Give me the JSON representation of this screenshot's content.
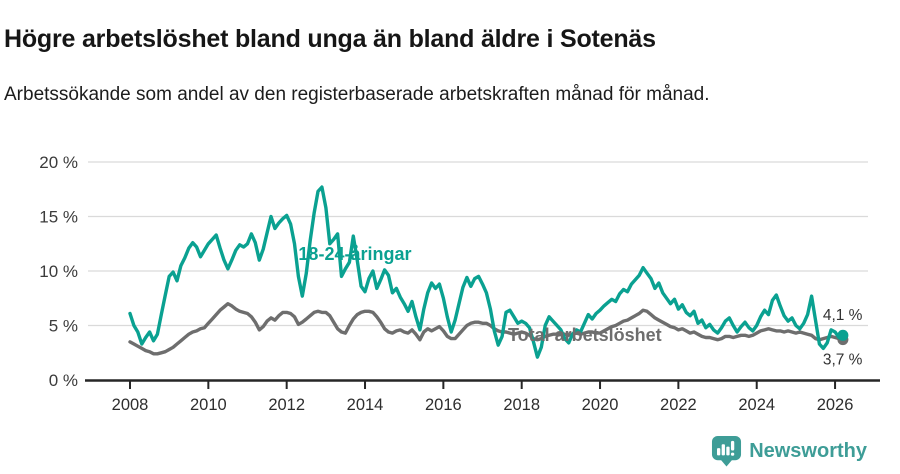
{
  "header": {
    "title": "Högre arbetslöshet bland unga än bland äldre i Sotenäs",
    "subtitle": "Arbetssökande som andel av den registerbaserade arbetskraften månad för månad."
  },
  "branding": {
    "name": "Newsworthy",
    "color": "#3e9d97",
    "icon": "bar-chart-speech-bubble"
  },
  "colors": {
    "youth_line": "#0aa191",
    "total_line": "#6e6e6e",
    "grid": "#dadada",
    "axis": "#262626",
    "tick_text": "#3b3b3b",
    "value_label_text": "#333333"
  },
  "chart_data": {
    "type": "line",
    "title": "Högre arbetslöshet bland unga än bland äldre i Sotenäs",
    "subtitle": "Arbetssökande som andel av den registerbaserade arbetskraften månad för månad.",
    "xlabel": "",
    "ylabel": "",
    "ylim": [
      0,
      20
    ],
    "xlim": [
      2006.9,
      2026.85
    ],
    "grid": "horizontal",
    "legend_position": "inline-labels",
    "x_start": 2008.0,
    "x_step": 0.1,
    "yticks": [
      {
        "value": 0,
        "label": "0 %"
      },
      {
        "value": 5,
        "label": "5 %"
      },
      {
        "value": 10,
        "label": "10 %"
      },
      {
        "value": 15,
        "label": "15 %"
      },
      {
        "value": 20,
        "label": "20 %"
      }
    ],
    "xticks": [
      {
        "value": 2008,
        "label": "2008"
      },
      {
        "value": 2010,
        "label": "2010"
      },
      {
        "value": 2012,
        "label": "2012"
      },
      {
        "value": 2014,
        "label": "2014"
      },
      {
        "value": 2016,
        "label": "2016"
      },
      {
        "value": 2018,
        "label": "2018"
      },
      {
        "value": 2020,
        "label": "2020"
      },
      {
        "value": 2022,
        "label": "2022"
      },
      {
        "value": 2024,
        "label": "2024"
      },
      {
        "value": 2026,
        "label": "2026"
      }
    ],
    "series": [
      {
        "name": "18-24-åringar",
        "color": "#0aa191",
        "label": {
          "text": "18-24-åringar",
          "x": 2012.3,
          "y": 11.0
        },
        "end_label": {
          "text": "4,1 %",
          "x": 2026.7,
          "y": 5.5
        },
        "last_value": 4.1,
        "values": [
          6.1,
          5.0,
          4.4,
          3.3,
          3.9,
          4.4,
          3.6,
          4.2,
          6.0,
          7.8,
          9.5,
          9.9,
          9.1,
          10.5,
          11.2,
          12.1,
          12.6,
          12.2,
          11.3,
          11.9,
          12.5,
          12.9,
          13.3,
          12.1,
          11.0,
          10.2,
          11.0,
          11.9,
          12.4,
          12.2,
          12.5,
          13.4,
          12.6,
          11.0,
          12.0,
          13.5,
          15.0,
          13.9,
          14.4,
          14.8,
          15.1,
          14.3,
          12.5,
          9.5,
          7.7,
          9.8,
          12.8,
          15.3,
          17.3,
          17.7,
          15.8,
          12.5,
          12.9,
          13.4,
          9.5,
          10.2,
          10.8,
          13.2,
          11.0,
          8.6,
          8.1,
          9.3,
          10.0,
          8.4,
          9.2,
          10.1,
          9.6,
          8.0,
          8.4,
          7.6,
          7.0,
          6.3,
          7.2,
          5.8,
          4.6,
          6.5,
          8.0,
          8.9,
          8.4,
          8.8,
          7.5,
          5.8,
          4.4,
          5.5,
          7.0,
          8.5,
          9.4,
          8.6,
          9.3,
          9.5,
          8.8,
          8.0,
          6.5,
          4.5,
          3.2,
          4.0,
          6.2,
          6.4,
          5.8,
          5.2,
          5.4,
          5.2,
          4.8,
          3.5,
          2.1,
          3.0,
          5.0,
          5.8,
          5.4,
          5.0,
          4.6,
          3.8,
          3.4,
          4.2,
          4.6,
          4.4,
          5.2,
          6.0,
          5.6,
          6.1,
          6.4,
          6.8,
          7.1,
          7.4,
          7.2,
          7.9,
          8.3,
          8.1,
          8.8,
          9.2,
          9.6,
          10.3,
          9.8,
          9.3,
          8.4,
          8.9,
          8.0,
          7.5,
          7.0,
          7.4,
          6.5,
          6.9,
          6.2,
          5.9,
          6.3,
          5.2,
          5.5,
          4.8,
          5.1,
          4.6,
          4.3,
          4.8,
          5.4,
          5.7,
          5.0,
          4.4,
          4.9,
          5.3,
          4.8,
          4.5,
          5.0,
          5.8,
          6.4,
          6.0,
          7.3,
          7.8,
          6.8,
          5.9,
          5.4,
          5.7,
          5.0,
          4.7,
          5.2,
          6.0,
          7.7,
          5.5,
          3.3,
          2.9,
          3.4,
          4.6,
          4.4,
          3.9,
          4.1
        ]
      },
      {
        "name": "Total arbetslöshet",
        "color": "#6e6e6e",
        "label": {
          "text": "Total arbetslöshet",
          "x": 2017.65,
          "y": 3.6
        },
        "end_label": {
          "text": "3,7 %",
          "x": 2026.7,
          "y": 1.4
        },
        "last_value": 3.7,
        "values": [
          3.5,
          3.3,
          3.1,
          2.9,
          2.7,
          2.6,
          2.4,
          2.4,
          2.5,
          2.6,
          2.8,
          3.0,
          3.3,
          3.6,
          3.9,
          4.2,
          4.4,
          4.5,
          4.7,
          4.8,
          5.2,
          5.6,
          6.0,
          6.4,
          6.7,
          7.0,
          6.8,
          6.5,
          6.3,
          6.2,
          6.1,
          5.8,
          5.3,
          4.6,
          4.9,
          5.4,
          5.7,
          5.5,
          5.9,
          6.2,
          6.2,
          6.1,
          5.8,
          5.1,
          5.3,
          5.6,
          5.9,
          6.2,
          6.3,
          6.2,
          6.2,
          5.9,
          5.3,
          4.7,
          4.4,
          4.3,
          5.0,
          5.6,
          6.0,
          6.2,
          6.3,
          6.3,
          6.2,
          5.8,
          5.3,
          4.7,
          4.4,
          4.3,
          4.5,
          4.6,
          4.4,
          4.3,
          4.6,
          4.2,
          3.7,
          4.4,
          4.7,
          4.5,
          4.7,
          4.9,
          4.5,
          4.0,
          3.8,
          3.8,
          4.2,
          4.6,
          5.0,
          5.2,
          5.3,
          5.3,
          5.2,
          5.2,
          5.0,
          4.7,
          4.5,
          4.4,
          4.4,
          4.3,
          4.2,
          4.3,
          4.4,
          4.3,
          4.1,
          3.8,
          3.7,
          3.8,
          4.0,
          4.1,
          4.2,
          4.2,
          4.3,
          4.2,
          4.1,
          4.2,
          4.3,
          4.2,
          4.3,
          4.4,
          4.4,
          4.3,
          4.3,
          4.5,
          4.7,
          4.9,
          5.0,
          5.2,
          5.4,
          5.5,
          5.7,
          5.9,
          6.1,
          6.4,
          6.3,
          6.0,
          5.7,
          5.5,
          5.3,
          5.1,
          4.9,
          4.8,
          4.6,
          4.7,
          4.5,
          4.3,
          4.4,
          4.2,
          4.0,
          3.9,
          3.9,
          3.8,
          3.7,
          3.8,
          4.0,
          4.0,
          3.9,
          4.0,
          4.1,
          4.1,
          4.0,
          4.1,
          4.3,
          4.5,
          4.6,
          4.7,
          4.6,
          4.5,
          4.5,
          4.4,
          4.5,
          4.4,
          4.3,
          4.4,
          4.3,
          4.2,
          4.1,
          3.8,
          3.7,
          3.8,
          3.9,
          4.0,
          3.9,
          3.8,
          3.7
        ]
      }
    ]
  }
}
